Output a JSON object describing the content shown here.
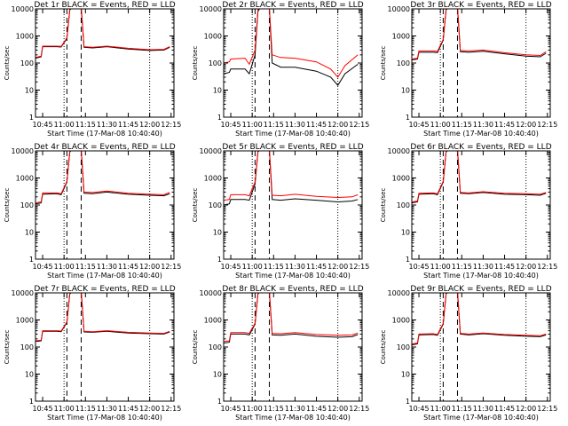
{
  "figure": {
    "background": "#ffffff",
    "events_color": "#000000",
    "lld_color": "#ff0000"
  },
  "chart_data": [
    {
      "type": "line",
      "title": "Det 1r BLACK = Events, RED = LLD",
      "xlabel": "Start Time (17-Mar-08 10:40:40)",
      "ylabel": "Counts/sec",
      "y_scale": "log",
      "ylim": [
        1,
        10000
      ],
      "x_tick_labels": [
        "10:45",
        "11:00",
        "11:15",
        "11:30",
        "11:45",
        "12:00",
        "12:15"
      ],
      "y_tick_labels": [
        "1",
        "10",
        "100",
        "1000",
        "10000"
      ],
      "dotted_vlines": [
        "11:00",
        "12:00"
      ],
      "dashed_vlines": [
        "11:02",
        "11:12"
      ],
      "series": [
        {
          "x": [
            "10:40",
            "10:44",
            "10:45",
            "10:55",
            "10:58",
            "11:02",
            "11:04",
            "11:06",
            "11:12",
            "11:14",
            "11:20",
            "11:30",
            "11:45",
            "12:00",
            "12:10",
            "12:14"
          ],
          "values": [
            150,
            170,
            400,
            400,
            390,
            800,
            9000,
            12000,
            11000,
            380,
            360,
            400,
            330,
            290,
            300,
            380
          ]
        },
        {
          "x": [
            "10:40",
            "10:44",
            "10:45",
            "10:55",
            "10:58",
            "11:02",
            "11:04",
            "11:06",
            "11:12",
            "11:14",
            "11:20",
            "11:30",
            "11:45",
            "12:00",
            "12:10",
            "12:14"
          ],
          "values": [
            160,
            180,
            420,
            420,
            410,
            850,
            9500,
            13000,
            12000,
            400,
            380,
            420,
            350,
            310,
            320,
            400
          ]
        }
      ]
    },
    {
      "type": "line",
      "title": "Det 2r BLACK = Events, RED = LLD",
      "xlabel": "Start Time (17-Mar-08 10:40:40)",
      "ylabel": "Counts/sec",
      "y_scale": "log",
      "ylim": [
        1,
        10000
      ],
      "x_tick_labels": [
        "10:45",
        "11:00",
        "11:15",
        "11:30",
        "11:45",
        "12:00",
        "12:15"
      ],
      "y_tick_labels": [
        "1",
        "10",
        "100",
        "1000",
        "10000"
      ],
      "dotted_vlines": [
        "11:00",
        "12:00"
      ],
      "dashed_vlines": [
        "11:02",
        "11:12"
      ],
      "series": [
        {
          "x": [
            "10:40",
            "10:44",
            "10:45",
            "10:55",
            "10:58",
            "11:02",
            "11:04",
            "11:06",
            "11:12",
            "11:14",
            "11:20",
            "11:30",
            "11:45",
            "11:55",
            "12:00",
            "12:05",
            "12:14"
          ],
          "values": [
            40,
            45,
            60,
            60,
            40,
            200,
            8000,
            12000,
            10000,
            100,
            70,
            70,
            50,
            30,
            15,
            40,
            90
          ]
        },
        {
          "x": [
            "10:40",
            "10:44",
            "10:45",
            "10:55",
            "10:58",
            "11:02",
            "11:04",
            "11:06",
            "11:12",
            "11:14",
            "11:20",
            "11:30",
            "11:45",
            "11:55",
            "12:00",
            "12:05",
            "12:14"
          ],
          "values": [
            100,
            110,
            140,
            150,
            90,
            300,
            9000,
            13000,
            11000,
            200,
            160,
            150,
            110,
            60,
            30,
            80,
            200
          ]
        }
      ]
    },
    {
      "type": "line",
      "title": "Det 3r BLACK = Events, RED = LLD",
      "xlabel": "Start Time (17-Mar-08 10:40:40)",
      "ylabel": "Counts/sec",
      "y_scale": "log",
      "ylim": [
        1,
        10000
      ],
      "x_tick_labels": [
        "10:45",
        "11:00",
        "11:15",
        "11:30",
        "11:45",
        "12:00",
        "12:15"
      ],
      "y_tick_labels": [
        "1",
        "10",
        "100",
        "1000",
        "10000"
      ],
      "dotted_vlines": [
        "11:00",
        "12:00"
      ],
      "dashed_vlines": [
        "11:02",
        "11:12"
      ],
      "series": [
        {
          "x": [
            "10:40",
            "10:44",
            "10:45",
            "10:55",
            "10:58",
            "11:02",
            "11:04",
            "11:06",
            "11:12",
            "11:14",
            "11:20",
            "11:30",
            "11:45",
            "12:00",
            "12:10",
            "12:14"
          ],
          "values": [
            130,
            140,
            250,
            250,
            240,
            700,
            9000,
            12000,
            11000,
            260,
            250,
            270,
            220,
            180,
            170,
            230
          ]
        },
        {
          "x": [
            "10:40",
            "10:44",
            "10:45",
            "10:55",
            "10:58",
            "11:02",
            "11:04",
            "11:06",
            "11:12",
            "11:14",
            "11:20",
            "11:30",
            "11:45",
            "12:00",
            "12:10",
            "12:14"
          ],
          "values": [
            140,
            150,
            280,
            280,
            270,
            750,
            9500,
            13000,
            12000,
            290,
            280,
            300,
            240,
            200,
            190,
            260
          ]
        }
      ]
    },
    {
      "type": "line",
      "title": "Det 4r BLACK = Events, RED = LLD",
      "xlabel": "Start Time (17-Mar-08 10:40:40)",
      "ylabel": "Counts/sec",
      "y_scale": "log",
      "ylim": [
        1,
        10000
      ],
      "x_tick_labels": [
        "10:45",
        "11:00",
        "11:15",
        "11:30",
        "11:45",
        "12:00",
        "12:15"
      ],
      "y_tick_labels": [
        "1",
        "10",
        "100",
        "1000",
        "10000"
      ],
      "dotted_vlines": [
        "11:00",
        "12:00"
      ],
      "dashed_vlines": [
        "11:02",
        "11:12"
      ],
      "series": [
        {
          "x": [
            "10:40",
            "10:44",
            "10:45",
            "10:55",
            "10:58",
            "11:02",
            "11:04",
            "11:06",
            "11:12",
            "11:14",
            "11:20",
            "11:30",
            "11:45",
            "12:00",
            "12:10",
            "12:14"
          ],
          "values": [
            110,
            120,
            250,
            260,
            240,
            700,
            9000,
            12000,
            11000,
            270,
            260,
            300,
            250,
            230,
            220,
            260
          ]
        },
        {
          "x": [
            "10:40",
            "10:44",
            "10:45",
            "10:55",
            "10:58",
            "11:02",
            "11:04",
            "11:06",
            "11:12",
            "11:14",
            "11:20",
            "11:30",
            "11:45",
            "12:00",
            "12:10",
            "12:14"
          ],
          "values": [
            120,
            130,
            280,
            280,
            260,
            750,
            9500,
            13000,
            12000,
            300,
            290,
            330,
            270,
            250,
            240,
            290
          ]
        }
      ]
    },
    {
      "type": "line",
      "title": "Det 5r BLACK = Events, RED = LLD",
      "xlabel": "Start Time (17-Mar-08 10:40:40)",
      "ylabel": "Counts/sec",
      "y_scale": "log",
      "ylim": [
        1,
        10000
      ],
      "x_tick_labels": [
        "10:45",
        "11:00",
        "11:15",
        "11:30",
        "11:45",
        "12:00",
        "12:15"
      ],
      "y_tick_labels": [
        "1",
        "10",
        "100",
        "1000",
        "10000"
      ],
      "dotted_vlines": [
        "11:00",
        "12:00"
      ],
      "dashed_vlines": [
        "11:02",
        "11:12"
      ],
      "series": [
        {
          "x": [
            "10:40",
            "10:44",
            "10:45",
            "10:55",
            "10:58",
            "11:02",
            "11:04",
            "11:06",
            "11:12",
            "11:14",
            "11:20",
            "11:30",
            "11:45",
            "12:00",
            "12:10",
            "12:14"
          ],
          "values": [
            100,
            110,
            160,
            160,
            150,
            600,
            9000,
            12000,
            11000,
            160,
            150,
            170,
            150,
            130,
            140,
            160
          ]
        },
        {
          "x": [
            "10:40",
            "10:44",
            "10:45",
            "10:55",
            "10:58",
            "11:02",
            "11:04",
            "11:06",
            "11:12",
            "11:14",
            "11:20",
            "11:30",
            "11:45",
            "12:00",
            "12:10",
            "12:14"
          ],
          "values": [
            150,
            160,
            240,
            240,
            220,
            700,
            9500,
            13000,
            12000,
            230,
            220,
            250,
            210,
            190,
            200,
            240
          ]
        }
      ]
    },
    {
      "type": "line",
      "title": "Det 6r BLACK = Events, RED = LLD",
      "xlabel": "Start Time (17-Mar-08 10:40:40)",
      "ylabel": "Counts/sec",
      "y_scale": "log",
      "ylim": [
        1,
        10000
      ],
      "x_tick_labels": [
        "10:45",
        "11:00",
        "11:15",
        "11:30",
        "11:45",
        "12:00",
        "12:15"
      ],
      "y_tick_labels": [
        "1",
        "10",
        "100",
        "1000",
        "10000"
      ],
      "dotted_vlines": [
        "11:00",
        "12:00"
      ],
      "dashed_vlines": [
        "11:02",
        "11:12"
      ],
      "series": [
        {
          "x": [
            "10:40",
            "10:44",
            "10:45",
            "10:55",
            "10:58",
            "11:02",
            "11:04",
            "11:06",
            "11:12",
            "11:14",
            "11:20",
            "11:30",
            "11:45",
            "12:00",
            "12:10",
            "12:14"
          ],
          "values": [
            120,
            130,
            250,
            260,
            240,
            700,
            9000,
            12000,
            11000,
            270,
            260,
            290,
            250,
            240,
            230,
            270
          ]
        },
        {
          "x": [
            "10:40",
            "10:44",
            "10:45",
            "10:55",
            "10:58",
            "11:02",
            "11:04",
            "11:06",
            "11:12",
            "11:14",
            "11:20",
            "11:30",
            "11:45",
            "12:00",
            "12:10",
            "12:14"
          ],
          "values": [
            130,
            140,
            270,
            280,
            260,
            750,
            9500,
            13000,
            12000,
            290,
            280,
            310,
            270,
            260,
            250,
            290
          ]
        }
      ]
    },
    {
      "type": "line",
      "title": "Det 7r BLACK = Events, RED = LLD",
      "xlabel": "Start Time (17-Mar-08 10:40:40)",
      "ylabel": "Counts/sec",
      "y_scale": "log",
      "ylim": [
        1,
        10000
      ],
      "x_tick_labels": [
        "10:45",
        "11:00",
        "11:15",
        "11:30",
        "11:45",
        "12:00",
        "12:15"
      ],
      "y_tick_labels": [
        "1",
        "10",
        "100",
        "1000",
        "10000"
      ],
      "dotted_vlines": [
        "11:00",
        "12:00"
      ],
      "dashed_vlines": [
        "11:02",
        "11:12"
      ],
      "series": [
        {
          "x": [
            "10:40",
            "10:44",
            "10:45",
            "10:55",
            "10:58",
            "11:02",
            "11:04",
            "11:06",
            "11:12",
            "11:14",
            "11:20",
            "11:30",
            "11:45",
            "12:00",
            "12:10",
            "12:14"
          ],
          "values": [
            160,
            170,
            380,
            380,
            370,
            800,
            9000,
            12000,
            11000,
            360,
            350,
            380,
            330,
            310,
            300,
            360
          ]
        },
        {
          "x": [
            "10:40",
            "10:44",
            "10:45",
            "10:55",
            "10:58",
            "11:02",
            "11:04",
            "11:06",
            "11:12",
            "11:14",
            "11:20",
            "11:30",
            "11:45",
            "12:00",
            "12:10",
            "12:14"
          ],
          "values": [
            170,
            180,
            400,
            400,
            390,
            850,
            9500,
            13000,
            12000,
            380,
            370,
            400,
            350,
            330,
            320,
            380
          ]
        }
      ]
    },
    {
      "type": "line",
      "title": "Det 8r BLACK = Events, RED = LLD",
      "xlabel": "Start Time (17-Mar-08 10:40:40)",
      "ylabel": "Counts/sec",
      "y_scale": "log",
      "ylim": [
        1,
        10000
      ],
      "x_tick_labels": [
        "10:45",
        "11:00",
        "11:15",
        "11:30",
        "11:45",
        "12:00",
        "12:15"
      ],
      "y_tick_labels": [
        "1",
        "10",
        "100",
        "1000",
        "10000"
      ],
      "dotted_vlines": [
        "11:00",
        "12:00"
      ],
      "dashed_vlines": [
        "11:02",
        "11:12"
      ],
      "series": [
        {
          "x": [
            "10:40",
            "10:44",
            "10:45",
            "10:55",
            "10:58",
            "11:02",
            "11:04",
            "11:06",
            "11:12",
            "11:14",
            "11:20",
            "11:30",
            "11:45",
            "12:00",
            "12:10",
            "12:14"
          ],
          "values": [
            140,
            150,
            300,
            300,
            280,
            700,
            9000,
            12000,
            11000,
            280,
            270,
            300,
            250,
            230,
            240,
            290
          ]
        },
        {
          "x": [
            "10:40",
            "10:44",
            "10:45",
            "10:55",
            "10:58",
            "11:02",
            "11:04",
            "11:06",
            "11:12",
            "11:14",
            "11:20",
            "11:30",
            "11:45",
            "12:00",
            "12:10",
            "12:14"
          ],
          "values": [
            160,
            170,
            340,
            340,
            320,
            750,
            9500,
            13000,
            12000,
            320,
            310,
            340,
            290,
            270,
            280,
            330
          ]
        }
      ]
    },
    {
      "type": "line",
      "title": "Det 9r BLACK = Events, RED = LLD",
      "xlabel": "Start Time (17-Mar-08 10:40:40)",
      "ylabel": "Counts/sec",
      "y_scale": "log",
      "ylim": [
        1,
        10000
      ],
      "x_tick_labels": [
        "10:45",
        "11:00",
        "11:15",
        "11:30",
        "11:45",
        "12:00",
        "12:15"
      ],
      "y_tick_labels": [
        "1",
        "10",
        "100",
        "1000",
        "10000"
      ],
      "dotted_vlines": [
        "11:00",
        "12:00"
      ],
      "dashed_vlines": [
        "11:02",
        "11:12"
      ],
      "series": [
        {
          "x": [
            "10:40",
            "10:44",
            "10:45",
            "10:55",
            "10:58",
            "11:02",
            "11:04",
            "11:06",
            "11:12",
            "11:14",
            "11:20",
            "11:30",
            "11:45",
            "12:00",
            "12:10",
            "12:14"
          ],
          "values": [
            120,
            130,
            280,
            290,
            270,
            700,
            9000,
            12000,
            11000,
            300,
            280,
            310,
            270,
            250,
            240,
            280
          ]
        },
        {
          "x": [
            "10:40",
            "10:44",
            "10:45",
            "10:55",
            "10:58",
            "11:02",
            "11:04",
            "11:06",
            "11:12",
            "11:14",
            "11:20",
            "11:30",
            "11:45",
            "12:00",
            "12:10",
            "12:14"
          ],
          "values": [
            130,
            140,
            300,
            310,
            290,
            750,
            9500,
            13000,
            12000,
            320,
            300,
            330,
            290,
            270,
            260,
            300
          ]
        }
      ]
    }
  ]
}
